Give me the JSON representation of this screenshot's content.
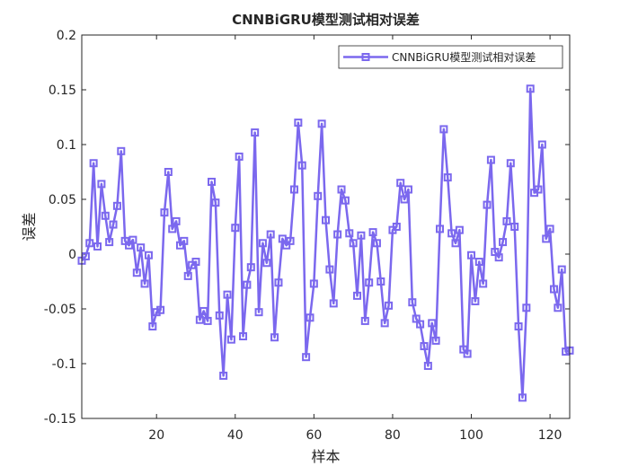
{
  "chart_data": {
    "type": "line",
    "title": "CNNBiGRU模型测试相对误差",
    "xlabel": "样本",
    "ylabel": "误差",
    "xlim": [
      1,
      125
    ],
    "ylim": [
      -0.15,
      0.2
    ],
    "xticks": [
      20,
      40,
      60,
      80,
      100,
      120
    ],
    "yticks": [
      -0.15,
      -0.1,
      -0.05,
      0,
      0.05,
      0.1,
      0.15,
      0.2
    ],
    "xtick_labels": [
      "20",
      "40",
      "60",
      "80",
      "100",
      "120"
    ],
    "ytick_labels": [
      "-0.15",
      "-0.1",
      "-0.05",
      "0",
      "0.05",
      "0.1",
      "0.15",
      "0.2"
    ],
    "grid": false,
    "legend_position": "top-right",
    "series": [
      {
        "name": "CNNBiGRU模型测试相对误差",
        "color": "#7B68EE",
        "marker": "square",
        "x": [
          1,
          2,
          3,
          4,
          5,
          6,
          7,
          8,
          9,
          10,
          11,
          12,
          13,
          14,
          15,
          16,
          17,
          18,
          19,
          20,
          21,
          22,
          23,
          24,
          25,
          26,
          27,
          28,
          29,
          30,
          31,
          32,
          33,
          34,
          35,
          36,
          37,
          38,
          39,
          40,
          41,
          42,
          43,
          44,
          45,
          46,
          47,
          48,
          49,
          50,
          51,
          52,
          53,
          54,
          55,
          56,
          57,
          58,
          59,
          60,
          61,
          62,
          63,
          64,
          65,
          66,
          67,
          68,
          69,
          70,
          71,
          72,
          73,
          74,
          75,
          76,
          77,
          78,
          79,
          80,
          81,
          82,
          83,
          84,
          85,
          86,
          87,
          88,
          89,
          90,
          91,
          92,
          93,
          94,
          95,
          96,
          97,
          98,
          99,
          100,
          101,
          102,
          103,
          104,
          105,
          106,
          107,
          108,
          109,
          110,
          111,
          112,
          113,
          114,
          115,
          116,
          117,
          118,
          119,
          120,
          121,
          122,
          123,
          124,
          125
        ],
        "values": [
          -0.006,
          -0.002,
          0.01,
          0.083,
          0.007,
          0.064,
          0.035,
          0.011,
          0.027,
          0.044,
          0.094,
          0.012,
          0.008,
          0.013,
          -0.017,
          0.006,
          -0.027,
          -0.001,
          -0.066,
          -0.053,
          -0.051,
          0.038,
          0.075,
          0.023,
          0.03,
          0.008,
          0.012,
          -0.02,
          -0.01,
          -0.007,
          -0.06,
          -0.052,
          -0.061,
          0.066,
          0.047,
          -0.056,
          -0.111,
          -0.037,
          -0.078,
          0.024,
          0.089,
          -0.075,
          -0.028,
          -0.012,
          0.111,
          -0.053,
          0.01,
          -0.008,
          0.018,
          -0.076,
          -0.026,
          0.014,
          0.008,
          0.012,
          0.059,
          0.12,
          0.081,
          -0.094,
          -0.058,
          -0.027,
          0.053,
          0.119,
          0.031,
          -0.014,
          -0.045,
          0.018,
          0.059,
          0.049,
          0.019,
          0.01,
          -0.038,
          0.017,
          -0.061,
          -0.026,
          0.02,
          0.01,
          -0.025,
          -0.063,
          -0.047,
          0.022,
          0.025,
          0.065,
          0.05,
          0.059,
          -0.044,
          -0.059,
          -0.064,
          -0.084,
          -0.102,
          -0.063,
          -0.079,
          0.023,
          0.114,
          0.07,
          0.019,
          0.01,
          0.022,
          -0.087,
          -0.091,
          -0.001,
          -0.043,
          -0.007,
          -0.027,
          0.045,
          0.086,
          0.002,
          -0.003,
          0.011,
          0.03,
          0.083,
          0.025,
          -0.066,
          -0.131,
          -0.049,
          0.151,
          0.056,
          0.059,
          0.1,
          0.014,
          0.023,
          -0.032,
          -0.049,
          -0.014,
          -0.089,
          -0.088
        ]
      }
    ]
  }
}
